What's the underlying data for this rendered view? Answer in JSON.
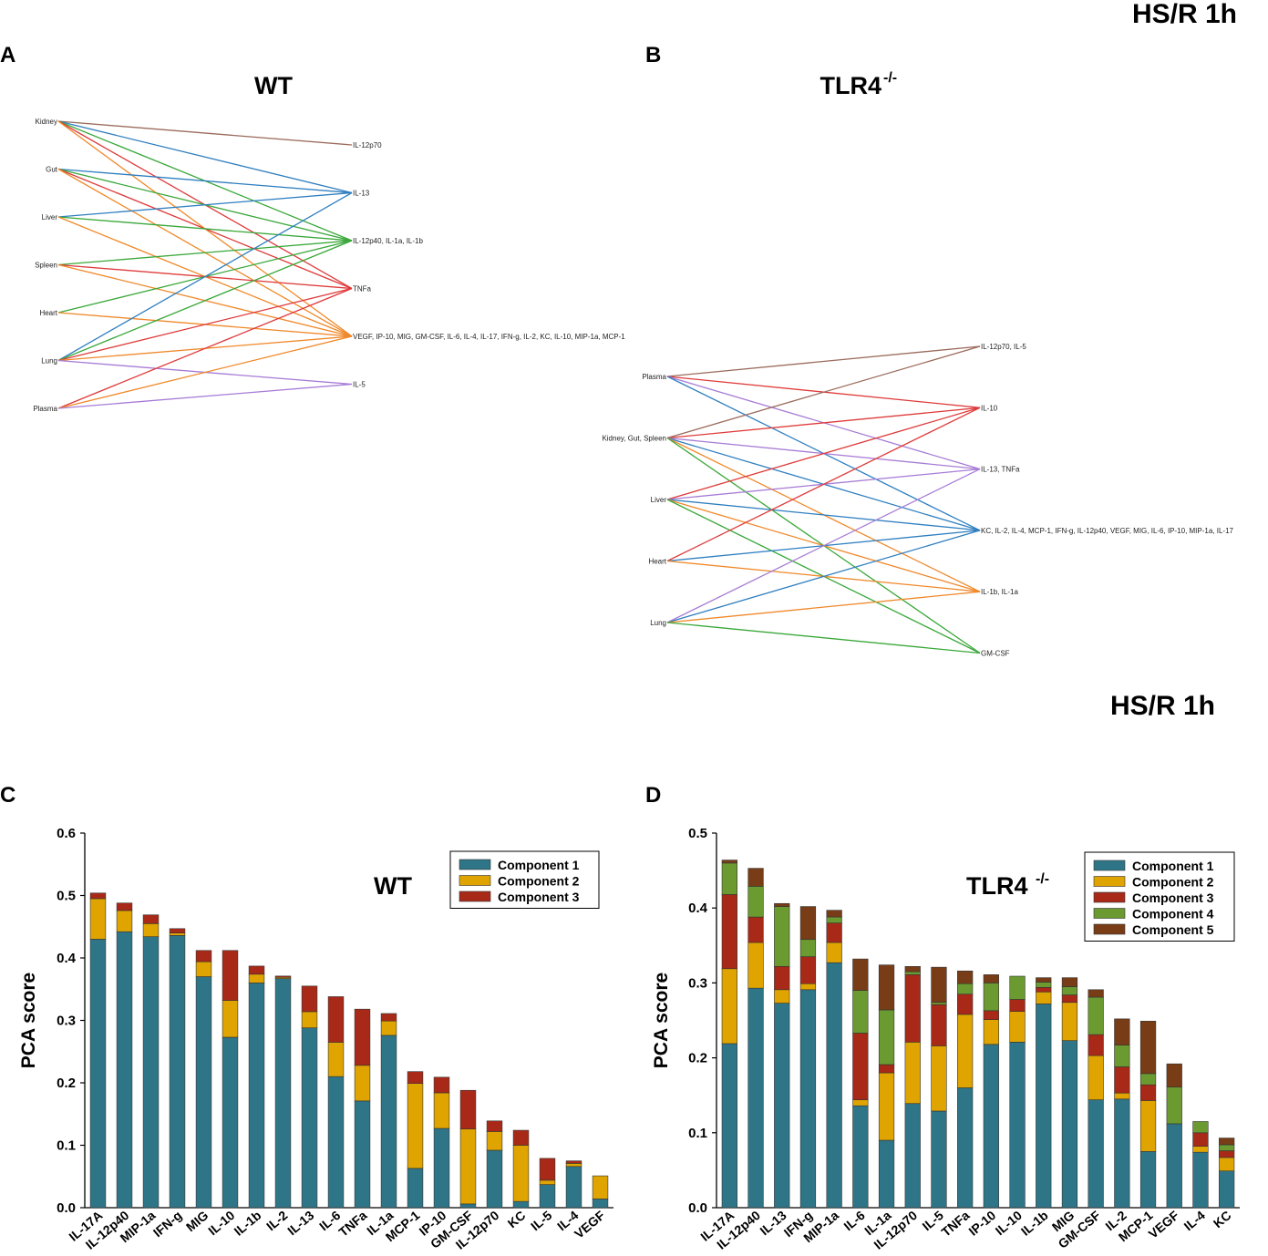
{
  "header": {
    "top": "HS/R  1h",
    "mid": "HS/R 1h"
  },
  "colors": {
    "brown": "#9b6b5c",
    "blue": "#2f7fc0",
    "green": "#3aa83a",
    "red": "#df3b3b",
    "orange": "#f0892a",
    "purple": "#a77cd6",
    "comp1": "#2f7588",
    "comp2": "#dfa400",
    "comp3": "#a82918",
    "comp4": "#6b9a31",
    "comp5": "#783d17"
  },
  "panels": {
    "A": {
      "letter": "A",
      "title": "WT",
      "left_nodes": [
        "Kidney",
        "Gut",
        "Liver",
        "Spleen",
        "Heart",
        "Lung",
        "Plasma"
      ],
      "right_nodes": [
        "IL-12p70",
        "IL-13",
        "IL-12p40, IL-1a, IL-1b",
        "TNFa",
        "VEGF, IP-10, MIG, GM-CSF, IL-6, IL-4, IL-17, IFN-g, IL-2, KC, IL-10, MIP-1a, MCP-1",
        "IL-5"
      ],
      "edges": [
        [
          0,
          0,
          "brown"
        ],
        [
          0,
          1,
          "blue"
        ],
        [
          0,
          2,
          "green"
        ],
        [
          0,
          3,
          "red"
        ],
        [
          0,
          4,
          "orange"
        ],
        [
          1,
          1,
          "blue"
        ],
        [
          1,
          2,
          "green"
        ],
        [
          1,
          3,
          "red"
        ],
        [
          1,
          4,
          "orange"
        ],
        [
          2,
          1,
          "blue"
        ],
        [
          2,
          2,
          "green"
        ],
        [
          2,
          4,
          "orange"
        ],
        [
          3,
          2,
          "green"
        ],
        [
          3,
          3,
          "red"
        ],
        [
          3,
          4,
          "orange"
        ],
        [
          4,
          2,
          "green"
        ],
        [
          4,
          4,
          "orange"
        ],
        [
          5,
          1,
          "blue"
        ],
        [
          5,
          2,
          "green"
        ],
        [
          5,
          3,
          "red"
        ],
        [
          5,
          4,
          "orange"
        ],
        [
          5,
          5,
          "purple"
        ],
        [
          6,
          3,
          "red"
        ],
        [
          6,
          4,
          "orange"
        ],
        [
          6,
          5,
          "purple"
        ]
      ]
    },
    "B": {
      "letter": "B",
      "title": "TLR4",
      "title_sup": "-/-",
      "left_nodes": [
        "Plasma",
        "Kidney, Gut, Spleen",
        "Liver",
        "Heart",
        "Lung"
      ],
      "right_nodes": [
        "IL-12p70, IL-5",
        "IL-10",
        "IL-13, TNFa",
        "KC, IL-2, IL-4, MCP-1, IFN-g, IL-12p40, VEGF, MIG, IL-6, IP-10, MIP-1a, IL-17",
        "IL-1b, IL-1a",
        "GM-CSF"
      ],
      "edges": [
        [
          0,
          0,
          "brown"
        ],
        [
          0,
          1,
          "red"
        ],
        [
          0,
          2,
          "purple"
        ],
        [
          0,
          3,
          "blue"
        ],
        [
          1,
          0,
          "brown"
        ],
        [
          1,
          1,
          "red"
        ],
        [
          1,
          2,
          "purple"
        ],
        [
          1,
          3,
          "blue"
        ],
        [
          1,
          4,
          "orange"
        ],
        [
          1,
          5,
          "green"
        ],
        [
          2,
          1,
          "red"
        ],
        [
          2,
          2,
          "purple"
        ],
        [
          2,
          3,
          "blue"
        ],
        [
          2,
          4,
          "orange"
        ],
        [
          2,
          5,
          "green"
        ],
        [
          3,
          1,
          "red"
        ],
        [
          3,
          3,
          "blue"
        ],
        [
          3,
          4,
          "orange"
        ],
        [
          4,
          2,
          "purple"
        ],
        [
          4,
          3,
          "blue"
        ],
        [
          4,
          4,
          "orange"
        ],
        [
          4,
          5,
          "green"
        ]
      ]
    },
    "C": {
      "letter": "C"
    },
    "D": {
      "letter": "D"
    }
  },
  "chart_data": [
    {
      "type": "bar",
      "stacked": true,
      "panel": "C",
      "title": "WT",
      "xlabel": "",
      "ylabel": "PCA score",
      "ylim": [
        0,
        0.6
      ],
      "yticks": [
        "0.0",
        "0.1",
        "0.2",
        "0.3",
        "0.4",
        "0.5",
        "0.6"
      ],
      "legend_position": "top-right",
      "categories": [
        "IL-17A",
        "IL-12p40",
        "MIP-1a",
        "IFN-g",
        "MIG",
        "IL-10",
        "IL-1b",
        "IL-2",
        "IL-13",
        "IL-6",
        "TNFa",
        "IL-1a",
        "MCP-1",
        "IP-10",
        "GM-CSF",
        "IL-12p70",
        "KC",
        "IL-5",
        "IL-4",
        "VEGF"
      ],
      "series": [
        {
          "name": "Component 1",
          "values": [
            0.43,
            0.442,
            0.434,
            0.436,
            0.37,
            0.273,
            0.36,
            0.367,
            0.288,
            0.21,
            0.171,
            0.276,
            0.063,
            0.127,
            0.006,
            0.092,
            0.01,
            0.037,
            0.066,
            0.014
          ]
        },
        {
          "name": "Component 2",
          "values": [
            0.065,
            0.034,
            0.021,
            0.004,
            0.024,
            0.059,
            0.014,
            0.002,
            0.026,
            0.055,
            0.057,
            0.023,
            0.136,
            0.057,
            0.12,
            0.03,
            0.09,
            0.007,
            0.005,
            0.037
          ]
        },
        {
          "name": "Component 3",
          "values": [
            0.009,
            0.012,
            0.014,
            0.007,
            0.018,
            0.08,
            0.013,
            0.002,
            0.041,
            0.073,
            0.09,
            0.012,
            0.019,
            0.025,
            0.062,
            0.017,
            0.024,
            0.035,
            0.004,
            0.0
          ]
        }
      ]
    },
    {
      "type": "bar",
      "stacked": true,
      "panel": "D",
      "title": "TLR4",
      "title_sup": "-/-",
      "xlabel": "",
      "ylabel": "PCA score",
      "ylim": [
        0,
        0.5
      ],
      "yticks": [
        "0.0",
        "0.1",
        "0.2",
        "0.3",
        "0.4",
        "0.5"
      ],
      "legend_position": "top-right",
      "categories": [
        "IL-17A",
        "IL-12p40",
        "IL-13",
        "IFN-g",
        "MIP-1a",
        "IL-6",
        "IL-1a",
        "IL-12p70",
        "IL-5",
        "TNFa",
        "IP-10",
        "IL-10",
        "IL-1b",
        "MIG",
        "GM-CSF",
        "IL-2",
        "MCP-1",
        "VEGF",
        "IL-4",
        "KC"
      ],
      "series": [
        {
          "name": "Component 1",
          "values": [
            0.219,
            0.293,
            0.273,
            0.291,
            0.327,
            0.136,
            0.09,
            0.139,
            0.129,
            0.16,
            0.218,
            0.221,
            0.272,
            0.223,
            0.144,
            0.145,
            0.075,
            0.112,
            0.074,
            0.049
          ]
        },
        {
          "name": "Component 2",
          "values": [
            0.1,
            0.061,
            0.018,
            0.008,
            0.027,
            0.008,
            0.09,
            0.082,
            0.087,
            0.098,
            0.033,
            0.041,
            0.016,
            0.051,
            0.059,
            0.008,
            0.068,
            0.0,
            0.008,
            0.018
          ]
        },
        {
          "name": "Component 3",
          "values": [
            0.099,
            0.034,
            0.031,
            0.036,
            0.026,
            0.089,
            0.011,
            0.09,
            0.055,
            0.027,
            0.012,
            0.016,
            0.006,
            0.01,
            0.028,
            0.035,
            0.021,
            0.0,
            0.018,
            0.009
          ]
        },
        {
          "name": "Component 4",
          "values": [
            0.042,
            0.041,
            0.08,
            0.023,
            0.008,
            0.057,
            0.073,
            0.004,
            0.003,
            0.014,
            0.037,
            0.031,
            0.007,
            0.011,
            0.05,
            0.029,
            0.015,
            0.049,
            0.015,
            0.008
          ]
        },
        {
          "name": "Component 5",
          "values": [
            0.004,
            0.024,
            0.004,
            0.044,
            0.009,
            0.042,
            0.06,
            0.007,
            0.047,
            0.017,
            0.011,
            0.0,
            0.006,
            0.012,
            0.01,
            0.035,
            0.07,
            0.031,
            0.0,
            0.009
          ]
        }
      ]
    }
  ]
}
